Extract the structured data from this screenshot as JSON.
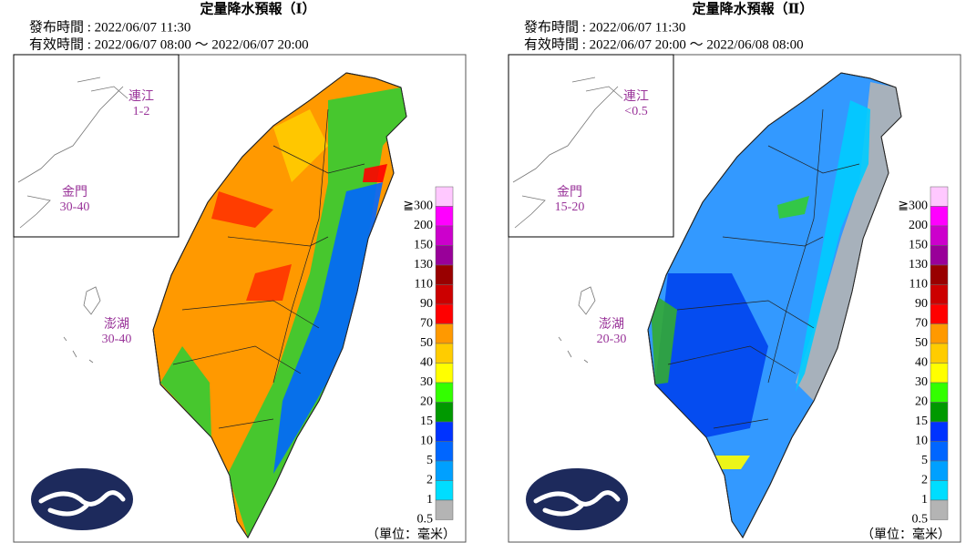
{
  "panels": [
    {
      "title": "定量降水預報（Ⅰ）",
      "issued": "發布時間 : 2022/06/07 11:30",
      "valid": "有效時間 : 2022/06/07 08:00 ～ 2022/06/07 20:00",
      "places": [
        {
          "name": "連江",
          "value": "1-2"
        },
        {
          "name": "金門",
          "value": "30-40"
        },
        {
          "name": "澎湖",
          "value": "30-40"
        }
      ],
      "unit": "（單位：毫米）"
    },
    {
      "title": "定量降水預報（Ⅱ）",
      "issued": "發布時間 : 2022/06/07 11:30",
      "valid": "有效時間 : 2022/06/07 20:00 ～ 2022/06/08 08:00",
      "places": [
        {
          "name": "連江",
          "value": "<0.5"
        },
        {
          "name": "金門",
          "value": "15-20"
        },
        {
          "name": "澎湖",
          "value": "20-30"
        }
      ],
      "unit": "（單位：毫米）"
    }
  ],
  "legend": [
    {
      "label": "≧300",
      "color": "#ffc8ff"
    },
    {
      "label": "200",
      "color": "#ff00ff"
    },
    {
      "label": "150",
      "color": "#cc00cc"
    },
    {
      "label": "130",
      "color": "#990099"
    },
    {
      "label": "110",
      "color": "#990000"
    },
    {
      "label": "90",
      "color": "#cc0000"
    },
    {
      "label": "70",
      "color": "#ff0000"
    },
    {
      "label": "50",
      "color": "#ff9900"
    },
    {
      "label": "40",
      "color": "#ffcc00"
    },
    {
      "label": "30",
      "color": "#ffff00"
    },
    {
      "label": "20",
      "color": "#33ff00"
    },
    {
      "label": "15",
      "color": "#009900"
    },
    {
      "label": "10",
      "color": "#0033ff"
    },
    {
      "label": "5",
      "color": "#0066ff"
    },
    {
      "label": "2",
      "color": "#00a0ff"
    },
    {
      "label": "1",
      "color": "#00ddff"
    },
    {
      "label": "0.5",
      "color": "#b4b4b4"
    }
  ]
}
